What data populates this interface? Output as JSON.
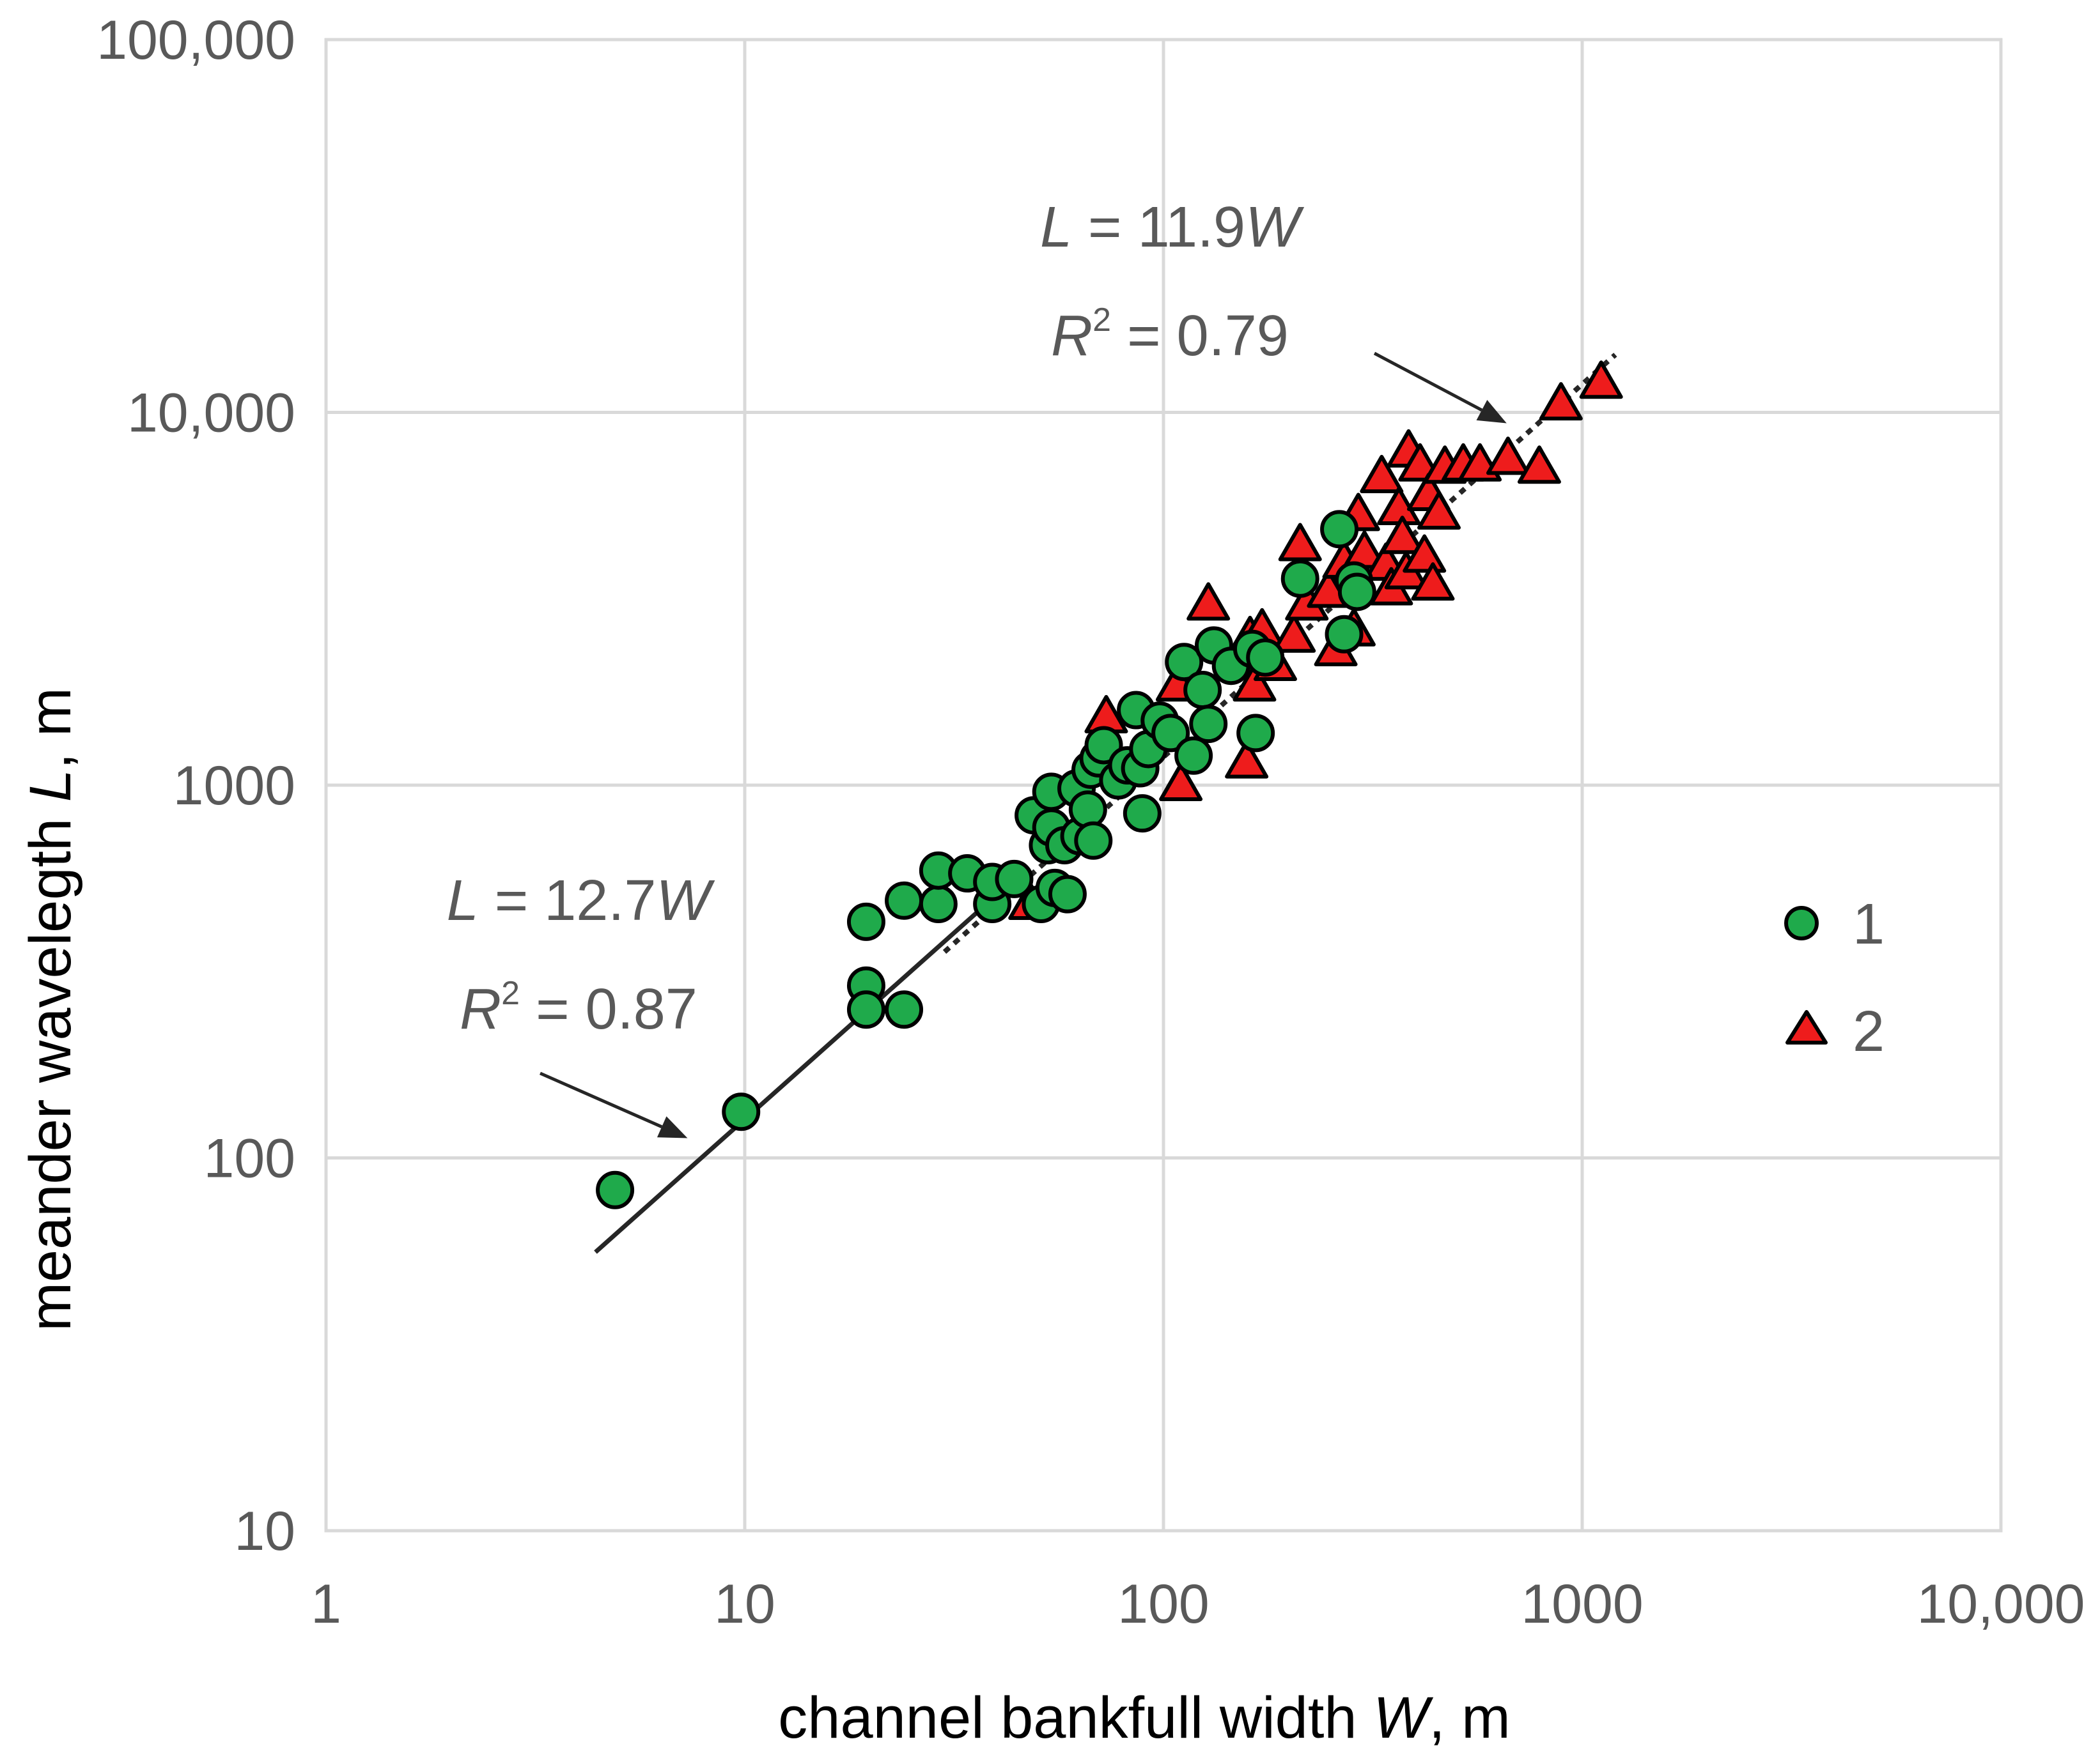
{
  "chart_data": {
    "type": "scatter",
    "title": "",
    "xlabel": {
      "prefix": "channel bankfull width ",
      "var": "W",
      "suffix": ", m"
    },
    "ylabel": {
      "prefix": "meander wavelegth ",
      "var": "L",
      "suffix": ", m"
    },
    "xscale": "log",
    "yscale": "log",
    "xlim": [
      1,
      10000
    ],
    "ylim": [
      10,
      100000
    ],
    "grid": true,
    "x_ticks": [
      {
        "value": 1,
        "label": "1"
      },
      {
        "value": 10,
        "label": "10"
      },
      {
        "value": 100,
        "label": "100"
      },
      {
        "value": 1000,
        "label": "1000"
      },
      {
        "value": 10000,
        "label": "10,000"
      }
    ],
    "y_ticks": [
      {
        "value": 10,
        "label": "10"
      },
      {
        "value": 100,
        "label": "100"
      },
      {
        "value": 1000,
        "label": "1000"
      },
      {
        "value": 10000,
        "label": "10,000"
      },
      {
        "value": 100000,
        "label": "100,000"
      }
    ],
    "colors": {
      "series1": "#1faa4b",
      "series2": "#ee1c1c",
      "edge": "#000000",
      "grid": "#d9d9d9",
      "trend": "#262626"
    },
    "legend_position": "right",
    "series": [
      {
        "name": "1",
        "marker": "circle",
        "points": [
          [
            4.9,
            82
          ],
          [
            9.8,
            133
          ],
          [
            19.5,
            430
          ],
          [
            19.5,
            290
          ],
          [
            19.5,
            250
          ],
          [
            24,
            250
          ],
          [
            24,
            490
          ],
          [
            29,
            480
          ],
          [
            29,
            590
          ],
          [
            34,
            580
          ],
          [
            39,
            480
          ],
          [
            39,
            550
          ],
          [
            44,
            560
          ],
          [
            49,
            830
          ],
          [
            51,
            480
          ],
          [
            53,
            690
          ],
          [
            54,
            960
          ],
          [
            54,
            770
          ],
          [
            55,
            530
          ],
          [
            58,
            690
          ],
          [
            59,
            510
          ],
          [
            62,
            980
          ],
          [
            63,
            730
          ],
          [
            66,
            860
          ],
          [
            67,
            1100
          ],
          [
            68,
            710
          ],
          [
            70,
            1180
          ],
          [
            72,
            1280
          ],
          [
            78,
            1030
          ],
          [
            82,
            1130
          ],
          [
            86,
            1590
          ],
          [
            88,
            1110
          ],
          [
            89,
            840
          ],
          [
            92,
            1250
          ],
          [
            98,
            1490
          ],
          [
            104,
            1380
          ],
          [
            112,
            2140
          ],
          [
            118,
            1200
          ],
          [
            124,
            1800
          ],
          [
            128,
            1460
          ],
          [
            132,
            2370
          ],
          [
            145,
            2090
          ],
          [
            163,
            2320
          ],
          [
            166,
            1380
          ],
          [
            175,
            2200
          ],
          [
            212,
            3580
          ],
          [
            263,
            4860
          ],
          [
            270,
            2540
          ],
          [
            285,
            3540
          ],
          [
            290,
            3300
          ]
        ]
      },
      {
        "name": "2",
        "marker": "triangle",
        "points": [
          [
            48,
            480
          ],
          [
            73,
            1520
          ],
          [
            108,
            1850
          ],
          [
            110,
            1000
          ],
          [
            128,
            3050
          ],
          [
            158,
            1150
          ],
          [
            161,
            2480
          ],
          [
            165,
            1850
          ],
          [
            172,
            2600
          ],
          [
            185,
            2100
          ],
          [
            205,
            2500
          ],
          [
            212,
            4400
          ],
          [
            220,
            3050
          ],
          [
            248,
            3300
          ],
          [
            258,
            2300
          ],
          [
            270,
            3950
          ],
          [
            285,
            2600
          ],
          [
            292,
            5300
          ],
          [
            302,
            4200
          ],
          [
            332,
            6700
          ],
          [
            340,
            3900
          ],
          [
            350,
            3350
          ],
          [
            365,
            5500
          ],
          [
            372,
            4600
          ],
          [
            380,
            3700
          ],
          [
            385,
            7850
          ],
          [
            410,
            7200
          ],
          [
            420,
            4100
          ],
          [
            430,
            6000
          ],
          [
            440,
            3450
          ],
          [
            455,
            5350
          ],
          [
            470,
            7100
          ],
          [
            520,
            7200
          ],
          [
            570,
            7200
          ],
          [
            665,
            7500
          ],
          [
            790,
            7100
          ],
          [
            890,
            10500
          ],
          [
            1110,
            12000
          ]
        ]
      }
    ],
    "trendlines": [
      {
        "series": "1",
        "style": "solid",
        "slope": 12.7,
        "x_range": [
          4.4,
          36
        ]
      },
      {
        "series": "2",
        "style": "dotted",
        "slope": 11.9,
        "x_range": [
          30,
          1200
        ]
      }
    ],
    "annotations": [
      {
        "id": "fit1",
        "eq": {
          "lhs": "L",
          "mid": " = 12.7",
          "var": "W"
        },
        "r2": {
          "var": "R",
          "sup": "2",
          "rest": " = 0.87"
        },
        "arrow_to": [
          7.3,
          113
        ]
      },
      {
        "id": "fit2",
        "eq": {
          "lhs": "L",
          "mid": " = 11.9",
          "var": "W"
        },
        "r2": {
          "var": "R",
          "sup": "2",
          "rest": " = 0.79"
        },
        "arrow_to": [
          660,
          9350
        ]
      }
    ]
  }
}
